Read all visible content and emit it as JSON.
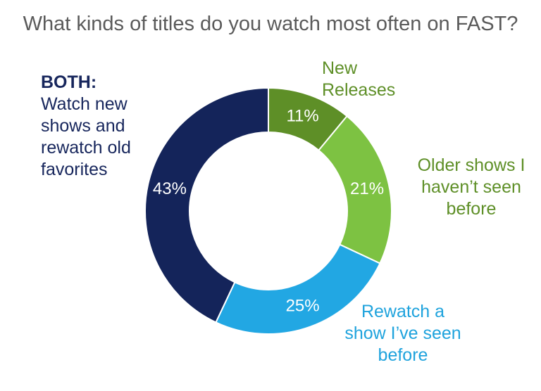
{
  "chart_data": {
    "type": "pie",
    "title": "What kinds of titles do you watch most often on FAST?",
    "legend": "none",
    "slices": [
      {
        "label_lines": [
          "New",
          "Releases"
        ],
        "value": 11,
        "value_label": "11%",
        "color": "#5e8f27",
        "text_color": "#ffffff"
      },
      {
        "label_lines": [
          "Older shows I",
          "haven’t seen",
          "before"
        ],
        "value": 21,
        "value_label": "21%",
        "color": "#7dc242",
        "text_color": "#ffffff"
      },
      {
        "label_lines": [
          "Rewatch a",
          "show I’ve seen",
          "before"
        ],
        "value": 25,
        "value_label": "25%",
        "color": "#22a7e3",
        "text_color": "#ffffff"
      },
      {
        "label_lead": "BOTH:",
        "label_lines": [
          "Watch new",
          "shows and",
          "rewatch old",
          "favorites"
        ],
        "value": 43,
        "value_label": "43%",
        "color": "#14245a",
        "text_color": "#ffffff"
      }
    ]
  }
}
